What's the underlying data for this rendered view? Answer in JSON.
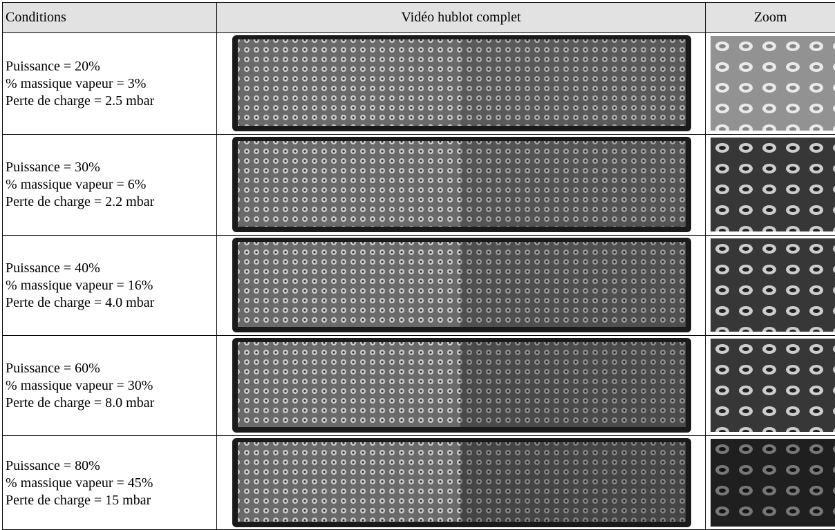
{
  "table": {
    "header": [
      "Conditions",
      "Vidéo hublot complet",
      "Zoom"
    ],
    "rows": [
      [
        "Puissance = 20%",
        "% massique vapeur = 3%",
        "Perte de charge = 2.5 mbar"
      ],
      [
        "Puissance = 30%",
        "% massique vapeur = 6%",
        "Perte de charge = 2.2 mbar"
      ],
      [
        "Puissance = 40%",
        "% massique vapeur = 16%",
        "Perte de charge = 4.0 mbar"
      ],
      [
        "Puissance = 60%",
        "% massique vapeur = 30%",
        "Perte de charge = 8.0 mbar"
      ],
      [
        "Puissance = 80%",
        "% massique vapeur = 45%",
        "Perte de charge = 15 mbar"
      ]
    ]
  }
}
